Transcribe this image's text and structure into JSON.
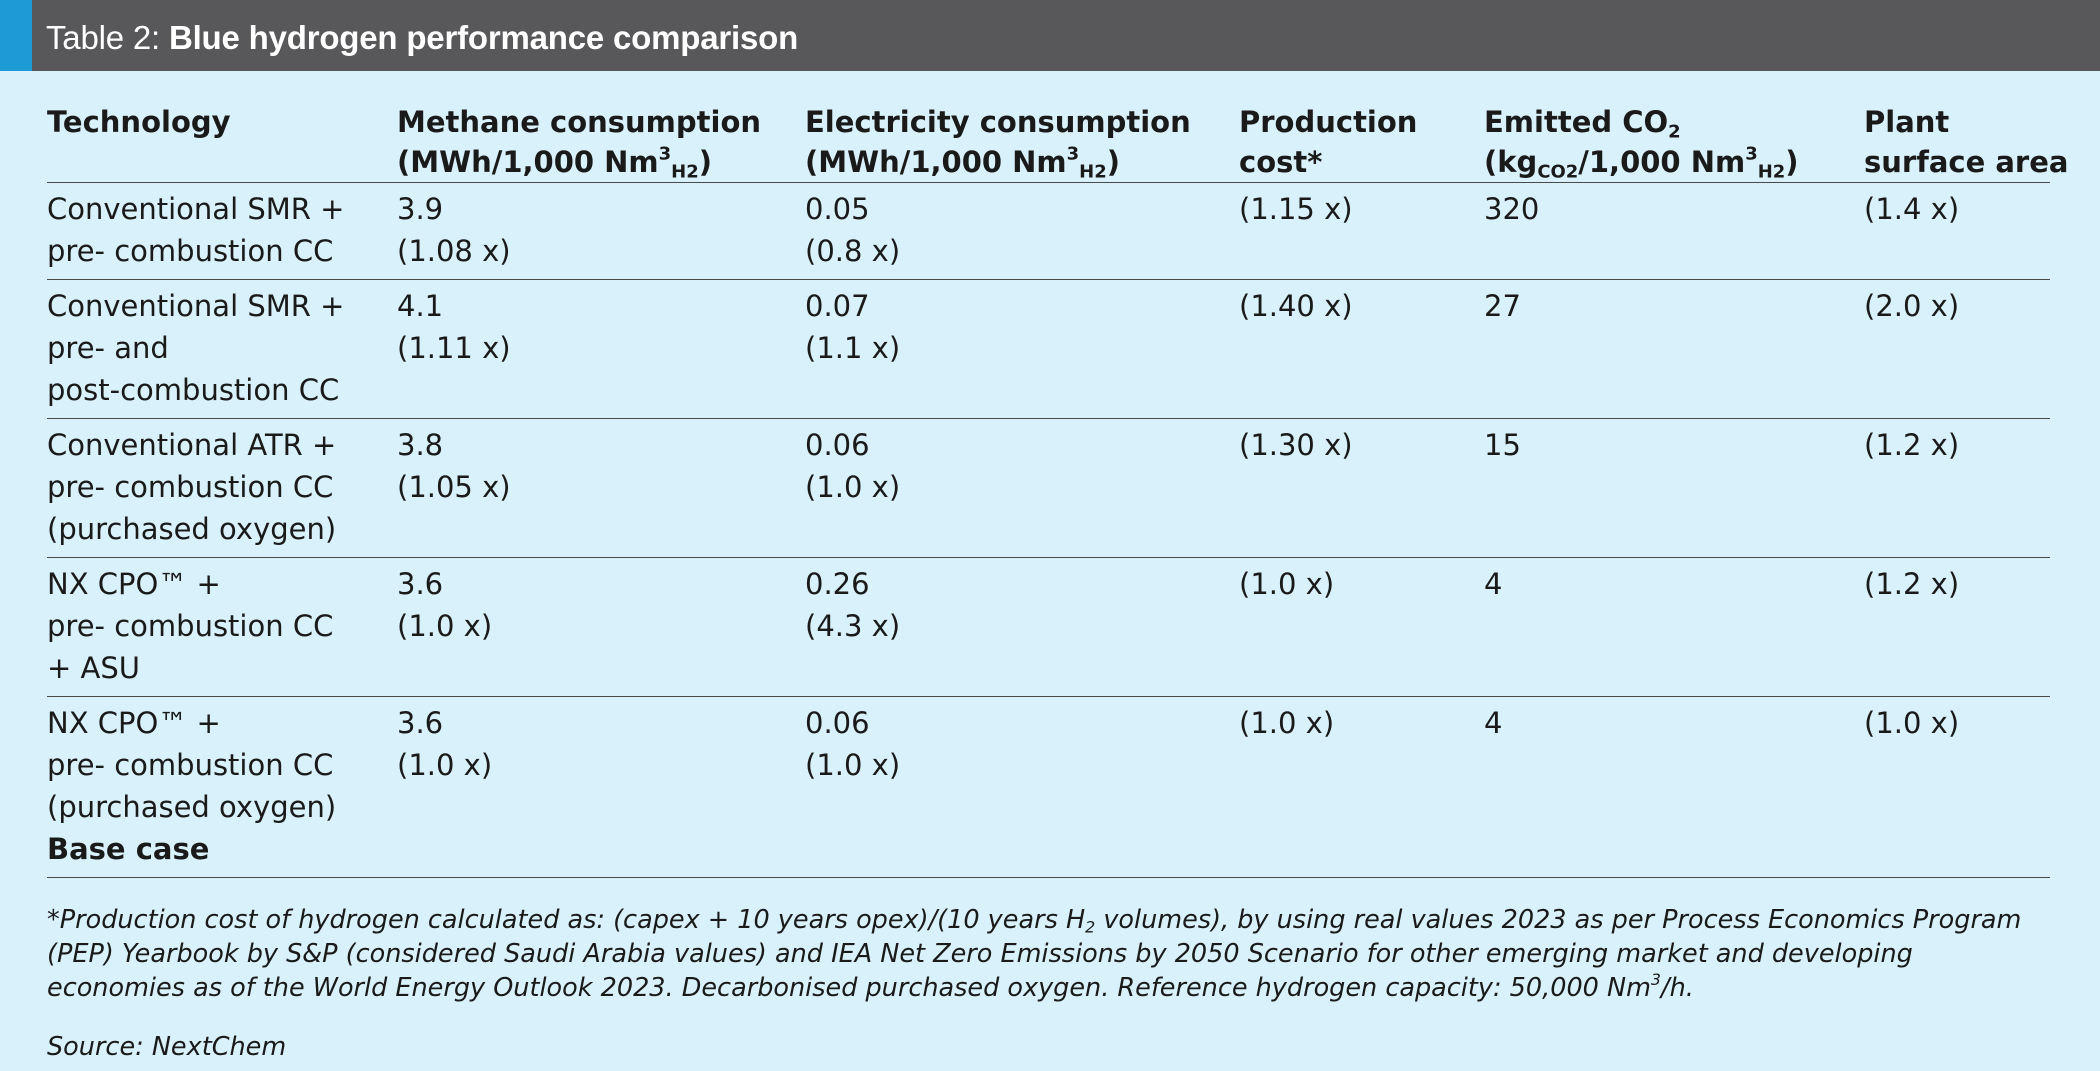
{
  "title": {
    "prefix": "Table 2: ",
    "main": "Blue hydrogen performance comparison"
  },
  "colors": {
    "background": "#d8f1fa",
    "title_bar": "#58585a",
    "accent": "#1d9bd7",
    "rules": "#4a4a4a"
  },
  "headers": {
    "technology": "Technology",
    "methane": {
      "line1": "Methane consumption",
      "line2a": "(MWh/1,000 Nm",
      "sup": "3",
      "sub": "H2",
      "line2b": ")"
    },
    "electricity": {
      "line1": "Electricity consumption",
      "line2a": "(MWh/1,000 Nm",
      "sup": "3",
      "sub": "H2",
      "line2b": ")"
    },
    "cost": {
      "line1": "Production",
      "line2": "cost*"
    },
    "co2": {
      "line1a": "Emitted CO",
      "line1sub": "2",
      "line2a": "(kg",
      "line2sub1": "CO2",
      "line2b": "/1,000 Nm",
      "sup": "3",
      "line2sub2": "H2",
      "line2c": ")"
    },
    "area": {
      "line1": "Plant",
      "line2": "surface area"
    }
  },
  "rows": [
    {
      "tech": [
        "Conventional SMR +",
        "pre- combustion CC"
      ],
      "methane": [
        "3.9",
        "(1.08 x)"
      ],
      "electricity": [
        "0.05",
        "(0.8 x)"
      ],
      "cost": "(1.15 x)",
      "co2": "320",
      "area": "(1.4 x)"
    },
    {
      "tech": [
        "Conventional SMR +",
        "pre- and",
        "post-combustion CC"
      ],
      "methane": [
        "4.1",
        "(1.11 x)"
      ],
      "electricity": [
        "0.07",
        "(1.1 x)"
      ],
      "cost": "(1.40 x)",
      "co2": "27",
      "area": "(2.0 x)"
    },
    {
      "tech": [
        "Conventional ATR +",
        "pre- combustion CC",
        "(purchased oxygen)"
      ],
      "methane": [
        "3.8",
        "(1.05 x)"
      ],
      "electricity": [
        "0.06",
        "(1.0 x)"
      ],
      "cost": "(1.30 x)",
      "co2": "15",
      "area": "(1.2 x)"
    },
    {
      "tech": [
        "NX CPO™ +",
        "pre- combustion CC",
        "+ ASU"
      ],
      "methane": [
        "3.6",
        "(1.0 x)"
      ],
      "electricity": [
        "0.26",
        "(4.3 x)"
      ],
      "cost": "(1.0 x)",
      "co2": "4",
      "area": "(1.2 x)"
    },
    {
      "tech": [
        "NX CPO™ +",
        "pre- combustion CC",
        "(purchased oxygen)"
      ],
      "tech_bold": "Base case",
      "methane": [
        "3.6",
        "(1.0 x)"
      ],
      "electricity": [
        "0.06",
        "(1.0 x)"
      ],
      "cost": "(1.0 x)",
      "co2": "4",
      "area": "(1.0 x)"
    }
  ],
  "footnote": {
    "part1": "*Production cost of hydrogen calculated as: (capex + 10 years opex)/(10 years H",
    "sub": "2",
    "part2": " volumes), by using real values 2023 as per Process Economics Program (PEP) Yearbook by S&P (considered Saudi Arabia values) and IEA Net Zero Emissions by 2050 Scenario for other emerging market and developing economies as of the World Energy Outlook 2023. Decarbonised purchased oxygen. Reference hydrogen capacity: 50,000 Nm",
    "sup": "3",
    "part3": "/h."
  },
  "source": "Source: NextChem"
}
